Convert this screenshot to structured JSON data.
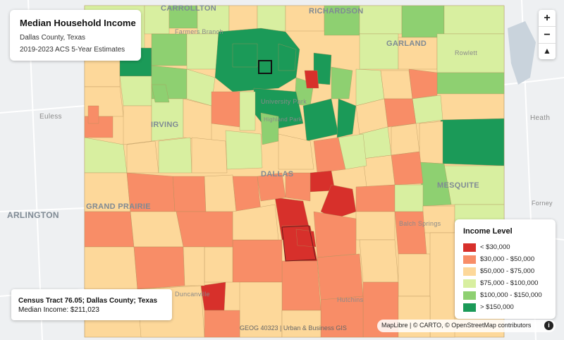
{
  "title_panel": {
    "title": "Median Household Income",
    "subtitle": "Dallas County, Texas",
    "source": "2019-2023 ACS 5-Year Estimates"
  },
  "zoom_controls": {
    "zoom_in": "+",
    "zoom_out": "−",
    "compass": "▲"
  },
  "legend": {
    "title": "Income Level",
    "items": [
      {
        "label": "< $30,000",
        "color": "#d7302b"
      },
      {
        "label": "$30,000 - $50,000",
        "color": "#f88d67"
      },
      {
        "label": "$50,000 - $75,000",
        "color": "#fdd89a"
      },
      {
        "label": "$75,000 - $100,000",
        "color": "#d8efa0"
      },
      {
        "label": "$100,000 - $150,000",
        "color": "#8ed071"
      },
      {
        "label": "> $150,000",
        "color": "#1b9a58"
      }
    ]
  },
  "tract_info": {
    "name": "Census Tract 76.05; Dallas County; Texas",
    "income": "Median Income: $211,023"
  },
  "credit": "GEOG 40323 | Urban & Business GIS",
  "attribution": "MapLibre | © CARTO, © OpenStreetMap contributors",
  "place_labels": {
    "carrollton": "CARROLLTON",
    "richardson": "RICHARDSON",
    "garland": "GARLAND",
    "rowlett": "Rowlett",
    "euless": "Euless",
    "heath": "Heath",
    "irving": "IRVING",
    "dallas": "DALLAS",
    "arlington": "ARLINGTON",
    "grand_prairie": "GRAND PRAIRIE",
    "mesquite": "MESQUITE",
    "forney": "Forney",
    "balch_springs": "Balch Springs",
    "university_park": "University Park",
    "highland_park": "Highland Park",
    "farmers_branch": "Farmers Branch",
    "hutchins": "Hutchins",
    "duncanville": "Duncanville"
  },
  "colors": {
    "basemap": "#eef0f2",
    "water": "#c9d3dc",
    "tract_border": "#b0905a"
  }
}
